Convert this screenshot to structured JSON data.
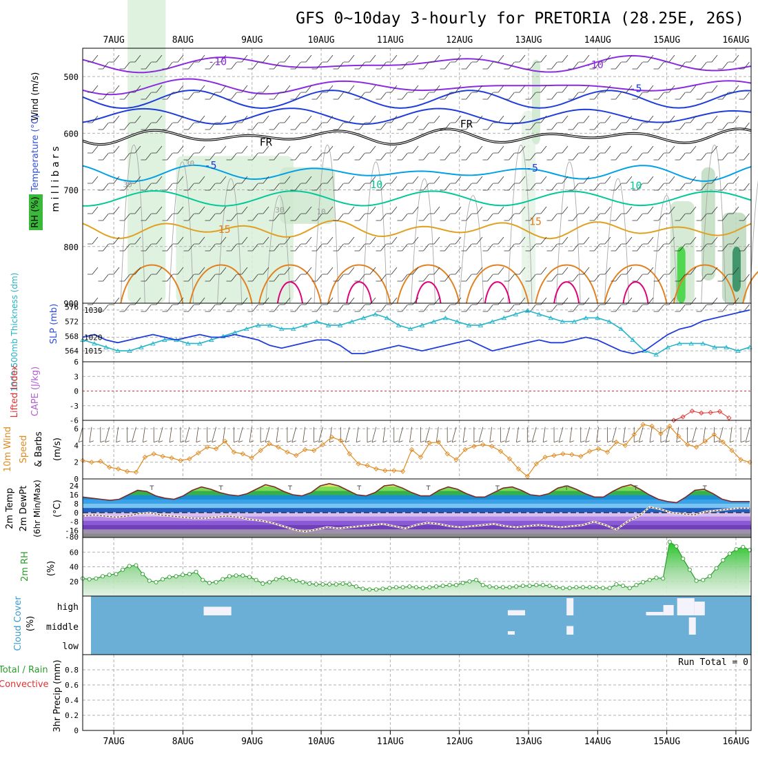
{
  "title": "GFS 0~10day 3-hourly for PRETORIA (28.25E, 26S)",
  "date_labels": [
    "7AUG",
    "8AUG",
    "9AUG",
    "10AUG",
    "11AUG",
    "12AUG",
    "13AUG",
    "14AUG",
    "15AUG",
    "16AUG"
  ],
  "colors": {
    "accent_purple": "#8a2be2",
    "accent_blue": "#1e3cdc",
    "accent_cyan": "#00a0e6",
    "accent_green": "#00c896",
    "accent_orange": "#e08020",
    "accent_magenta": "#e0007a",
    "cloud_blue": "#6baed6",
    "dewpt_brown": "#7b4b2a"
  },
  "chart_data": [
    {
      "type": "contour",
      "name": "upper-air",
      "ylabels": {
        "wind": "Wind (m/s)",
        "temperature": "Temperature (°C)",
        "rh": "RH (%)",
        "axis": "m i l l i b a r s"
      },
      "y_ticks": [
        "500",
        "600",
        "700",
        "800",
        "900"
      ],
      "ylim": [
        450,
        900
      ],
      "contour_labels": [
        "-10",
        "-10",
        "-5",
        "FR",
        "FR",
        "-5",
        "-5",
        "10",
        "10",
        "15",
        "15",
        "30",
        "30",
        "30",
        "10"
      ]
    },
    {
      "type": "line",
      "name": "slp-thickness",
      "ylabels": {
        "thickness": "1000-500mb Thickness (dm)",
        "slp": "SLP (mb)"
      },
      "left_ticks": [
        "576",
        "572",
        "568",
        "564"
      ],
      "right_ticks": [
        "1030",
        "1020",
        "1015"
      ],
      "series": [
        {
          "name": "SLP",
          "color": "#1e3cdc",
          "values": [
            1020,
            1021,
            1019,
            1018,
            1019,
            1020,
            1021,
            1020,
            1019,
            1020,
            1021,
            1020,
            1020,
            1021,
            1020,
            1019,
            1017,
            1016,
            1017,
            1018,
            1019,
            1019,
            1017,
            1014,
            1014,
            1015,
            1016,
            1017,
            1016,
            1015,
            1016,
            1017,
            1018,
            1019,
            1017,
            1015,
            1016,
            1017,
            1018,
            1019,
            1018,
            1018,
            1019,
            1020,
            1019,
            1017,
            1015,
            1014,
            1015,
            1018,
            1021,
            1023,
            1024,
            1026,
            1027,
            1028,
            1029,
            1030
          ]
        },
        {
          "name": "Thickness",
          "color": "#22b4c8",
          "values": [
            567,
            566,
            565,
            564,
            564,
            565,
            566,
            567,
            567,
            566,
            566,
            567,
            568,
            569,
            570,
            571,
            571,
            570,
            570,
            571,
            572,
            571,
            571,
            572,
            573,
            574,
            573,
            571,
            570,
            571,
            572,
            573,
            572,
            571,
            571,
            572,
            573,
            574,
            575,
            574,
            573,
            572,
            572,
            573,
            573,
            572,
            570,
            567,
            564,
            563,
            565,
            566,
            566,
            566,
            565,
            565,
            564,
            565
          ]
        }
      ]
    },
    {
      "type": "line",
      "name": "cape-lifted-index",
      "ylabels": {
        "cape": "CAPE (J/kg)",
        "li": "Lifted Index"
      },
      "y_ticks": [
        "6",
        "3",
        "0",
        "-3",
        "-6"
      ],
      "ylim": [
        -6,
        6
      ],
      "series": [
        {
          "name": "Lifted Index",
          "color": "#e03030",
          "x_range": [
            15.1,
            15.9
          ],
          "values": [
            -6,
            -5.3,
            -4.1,
            -4.5,
            -4.4,
            -4.2,
            -5.5
          ]
        }
      ]
    },
    {
      "type": "line",
      "name": "wind10m",
      "ylabels": {
        "a": "10m Wind",
        "b": "Speed",
        "c": "& Barbs",
        "unit": "(m/s)"
      },
      "y_ticks": [
        "0",
        "2",
        "4",
        "6"
      ],
      "ylim": [
        0,
        7
      ],
      "series": [
        {
          "name": "10m Wind Speed",
          "color": "#e08a20",
          "values": [
            2.2,
            2.0,
            2.1,
            1.4,
            1.2,
            0.9,
            0.8,
            2.6,
            3.0,
            2.7,
            2.5,
            2.2,
            2.4,
            3.1,
            3.8,
            3.6,
            4.5,
            3.2,
            3.0,
            2.5,
            3.4,
            4.2,
            3.8,
            3.2,
            2.8,
            3.5,
            3.4,
            4.1,
            5.0,
            4.6,
            3.0,
            1.8,
            1.6,
            1.2,
            1.0,
            1.0,
            0.9,
            3.5,
            2.6,
            4.3,
            4.4,
            3.0,
            2.3,
            3.5,
            3.9,
            4.1,
            3.9,
            3.3,
            2.4,
            1.2,
            0.3,
            1.8,
            2.6,
            2.8,
            3.0,
            2.9,
            2.7,
            3.3,
            3.6,
            3.2,
            4.4,
            4.0,
            5.3,
            6.5,
            6.3,
            5.4,
            6.3,
            5.1,
            4.1,
            3.8,
            4.5,
            5.3,
            4.4,
            3.4,
            2.3,
            2.0
          ]
        }
      ]
    },
    {
      "type": "area",
      "name": "temp2m",
      "ylabels": {
        "a": "2m Temp",
        "b": "2m DewPt",
        "c": "(6hr Min/Max)",
        "unit": "(°C)"
      },
      "y_ticks": [
        "24",
        "16",
        "8",
        "0",
        "-8",
        "-16",
        "-80"
      ],
      "series": [
        {
          "name": "2m Temp",
          "values": [
            14,
            13,
            12,
            11,
            12,
            16,
            20,
            19,
            15,
            13,
            12,
            15,
            20,
            23,
            21,
            18,
            16,
            15,
            17,
            21,
            25,
            23,
            19,
            16,
            15,
            18,
            24,
            26,
            24,
            20,
            16,
            15,
            18,
            24,
            25,
            22,
            18,
            15,
            15,
            20,
            23,
            21,
            17,
            14,
            14,
            18,
            22,
            23,
            20,
            16,
            15,
            17,
            22,
            24,
            21,
            17,
            14,
            14,
            19,
            23,
            25,
            21,
            16,
            12,
            10,
            9,
            14,
            20,
            21,
            17,
            12,
            10,
            10,
            10
          ]
        },
        {
          "name": "2m DewPt",
          "values": [
            -3,
            -2,
            -3,
            -4,
            -3,
            -1,
            0,
            -2,
            -3,
            -4,
            -5,
            -5,
            -4,
            -3,
            -4,
            -6,
            -7,
            -9,
            -12,
            -15,
            -17,
            -15,
            -13,
            -14,
            -13,
            -12,
            -11,
            -10,
            -12,
            -14,
            -11,
            -9,
            -10,
            -12,
            -13,
            -12,
            -11,
            -10,
            -12,
            -13,
            -12,
            -11,
            -12,
            -13,
            -12,
            -11,
            -8,
            -11,
            -15,
            -8,
            -3,
            5,
            3,
            0,
            -1,
            -2,
            1,
            2,
            3,
            4,
            4
          ]
        }
      ]
    },
    {
      "type": "area",
      "name": "rh2m",
      "ylabels": {
        "rh": "2m RH",
        "unit": "(%)"
      },
      "y_ticks": [
        "20",
        "40",
        "60"
      ],
      "ylim": [
        0,
        80
      ],
      "series": [
        {
          "name": "2m RH",
          "color": "#2a9d2a",
          "values": [
            24,
            23,
            24,
            27,
            29,
            30,
            36,
            41,
            42,
            30,
            21,
            19,
            23,
            26,
            27,
            29,
            30,
            33,
            22,
            18,
            19,
            23,
            27,
            28,
            28,
            26,
            22,
            17,
            19,
            23,
            25,
            23,
            21,
            19,
            17,
            16,
            16,
            16,
            16,
            17,
            16,
            13,
            10,
            9,
            9,
            10,
            11,
            12,
            12,
            13,
            12,
            11,
            12,
            13,
            14,
            15,
            15,
            18,
            20,
            22,
            15,
            13,
            12,
            12,
            12,
            13,
            14,
            14,
            15,
            15,
            14,
            12,
            11,
            11,
            12,
            12,
            12,
            12,
            11,
            11,
            16,
            14,
            11,
            15,
            19,
            22,
            25,
            24,
            74,
            68,
            51,
            36,
            21,
            22,
            27,
            38,
            49,
            58,
            64,
            67,
            63
          ]
        }
      ]
    },
    {
      "type": "heatmap",
      "name": "cloud-cover",
      "ylabels": {
        "cloud": "Cloud Cover",
        "unit": "(%)"
      },
      "levels": [
        "high",
        "middle",
        "low"
      ],
      "blocks": [
        {
          "level": "high",
          "day": 1.3,
          "width": 0.4,
          "amount": 0.5
        },
        {
          "level": "high",
          "day": 5.7,
          "width": 0.25,
          "amount": 0.3
        },
        {
          "level": "high",
          "day": 6.55,
          "width": 0.1,
          "amount": 1.0
        },
        {
          "level": "high",
          "day": 7.7,
          "width": 0.25,
          "amount": 0.2
        },
        {
          "level": "high",
          "day": 7.95,
          "width": 0.15,
          "amount": 0.6
        },
        {
          "level": "high",
          "day": 8.15,
          "width": 0.25,
          "amount": 1.0
        },
        {
          "level": "high",
          "day": 8.4,
          "width": 0.15,
          "amount": 0.8
        },
        {
          "level": "middle",
          "day": 5.7,
          "width": 0.1,
          "amount": 0.2
        },
        {
          "level": "middle",
          "day": 6.55,
          "width": 0.1,
          "amount": 0.5
        },
        {
          "level": "middle",
          "day": 8.32,
          "width": 0.1,
          "amount": 1.0
        }
      ]
    },
    {
      "type": "bar",
      "name": "precip",
      "ylabels": {
        "a": "3hr Precip (mm)",
        "b": "Total / Rain",
        "c": "Convective"
      },
      "y_ticks": [
        "0",
        "0.2",
        "0.4",
        "0.6",
        "0.8"
      ],
      "ylim": [
        0,
        1
      ],
      "values": [],
      "run_total": "Run Total = 0"
    }
  ]
}
